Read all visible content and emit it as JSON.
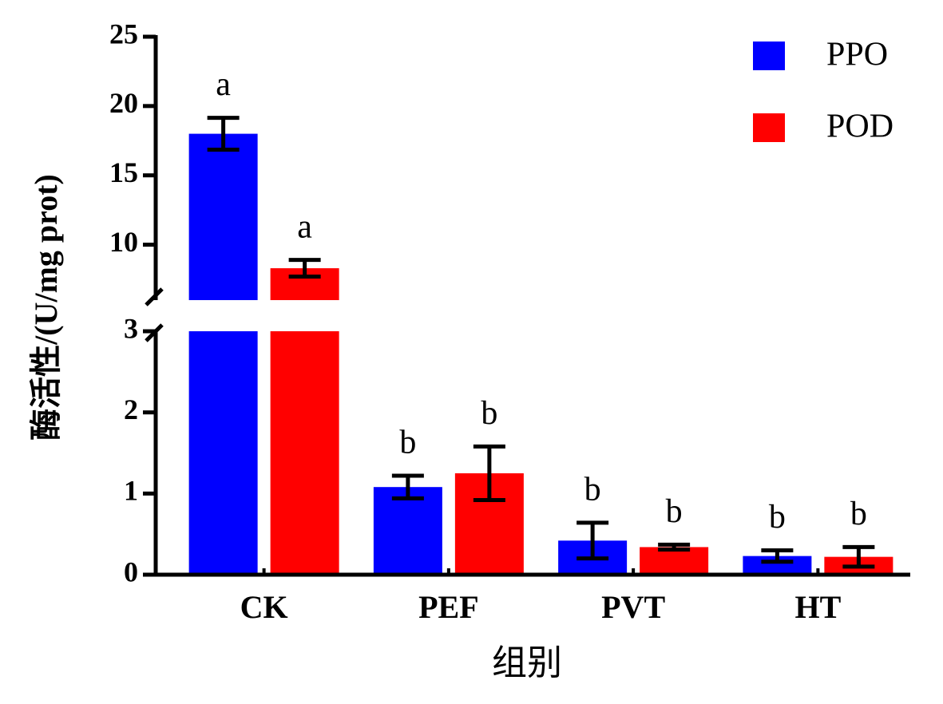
{
  "chart_data": {
    "type": "bar",
    "ylabel": "酶活性/(U/mg prot)",
    "xlabel": "组别",
    "categories": [
      "CK",
      "PEF",
      "PVT",
      "HT"
    ],
    "series": [
      {
        "name": "PPO",
        "color": "#0000ff",
        "values": [
          18.0,
          1.08,
          0.42,
          0.23
        ],
        "errors": [
          1.15,
          0.14,
          0.22,
          0.07
        ],
        "letters": [
          "a",
          "b",
          "b",
          "b"
        ]
      },
      {
        "name": "POD",
        "color": "#ff0000",
        "values": [
          8.3,
          1.25,
          0.34,
          0.22
        ],
        "errors": [
          0.6,
          0.33,
          0.03,
          0.12
        ],
        "letters": [
          "a",
          "b",
          "b",
          "b"
        ]
      }
    ],
    "ylim": [
      0,
      25
    ],
    "ybreak": [
      3,
      6
    ],
    "yticks": [
      0,
      1,
      2,
      3,
      10,
      15,
      20,
      25
    ],
    "legend": "upper right"
  }
}
